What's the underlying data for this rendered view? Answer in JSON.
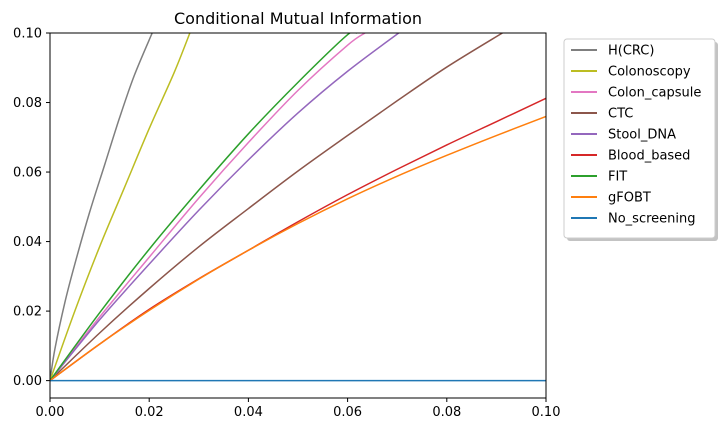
{
  "chart_data": {
    "type": "line",
    "title": "Conditional Mutual Information",
    "xlabel": "",
    "ylabel": "",
    "xlim": [
      0.0,
      0.1
    ],
    "ylim": [
      -0.005,
      0.1
    ],
    "x_ticks": [
      "0.00",
      "0.02",
      "0.04",
      "0.06",
      "0.08",
      "0.10"
    ],
    "y_ticks": [
      "0.00",
      "0.02",
      "0.04",
      "0.06",
      "0.08",
      "0.10"
    ],
    "x_tick_values": [
      0.0,
      0.02,
      0.04,
      0.06,
      0.08,
      0.1
    ],
    "y_tick_values": [
      0.0,
      0.02,
      0.04,
      0.06,
      0.08,
      0.1
    ],
    "grid": false,
    "legend_position": "outside-right-top",
    "series": [
      {
        "name": "H(CRC)",
        "color": "#7f7f7f",
        "x": [
          0.0,
          0.001,
          0.003,
          0.005,
          0.008,
          0.011,
          0.014,
          0.017,
          0.0206
        ],
        "y": [
          0.0,
          0.0092,
          0.0225,
          0.0335,
          0.0485,
          0.062,
          0.0755,
          0.0878,
          0.1
        ]
      },
      {
        "name": "Colonoscopy",
        "color": "#bcbd22",
        "x": [
          0.0,
          0.005,
          0.01,
          0.015,
          0.02,
          0.025,
          0.0282
        ],
        "y": [
          0.0,
          0.02,
          0.0385,
          0.0555,
          0.0725,
          0.0885,
          0.1
        ]
      },
      {
        "name": "Colon_capsule",
        "color": "#e377c2",
        "x": [
          0.0,
          0.01,
          0.02,
          0.03,
          0.04,
          0.05,
          0.06,
          0.0635
        ],
        "y": [
          0.0,
          0.0183,
          0.0355,
          0.0525,
          0.0685,
          0.0835,
          0.0965,
          0.1
        ]
      },
      {
        "name": "CTC",
        "color": "#8c564b",
        "x": [
          0.0,
          0.01,
          0.02,
          0.03,
          0.04,
          0.05,
          0.06,
          0.07,
          0.08,
          0.0912
        ],
        "y": [
          0.0,
          0.0137,
          0.0265,
          0.0385,
          0.0495,
          0.0603,
          0.0705,
          0.0805,
          0.0902,
          0.1
        ]
      },
      {
        "name": "Stool_DNA",
        "color": "#9467bd",
        "x": [
          0.0,
          0.01,
          0.02,
          0.03,
          0.04,
          0.05,
          0.06,
          0.0703
        ],
        "y": [
          0.0,
          0.0175,
          0.0335,
          0.049,
          0.0635,
          0.077,
          0.089,
          0.1
        ]
      },
      {
        "name": "Blood_based",
        "color": "#d62728",
        "x": [
          0.0,
          0.01,
          0.02,
          0.03,
          0.04,
          0.05,
          0.06,
          0.07,
          0.08,
          0.09,
          0.1
        ],
        "y": [
          0.0,
          0.0105,
          0.0205,
          0.0293,
          0.0375,
          0.0457,
          0.0535,
          0.0608,
          0.0678,
          0.0745,
          0.0812
        ]
      },
      {
        "name": "FIT",
        "color": "#2ca02c",
        "x": [
          0.0,
          0.01,
          0.02,
          0.03,
          0.04,
          0.05,
          0.06,
          0.0618
        ],
        "y": [
          0.0,
          0.0195,
          0.0378,
          0.0548,
          0.071,
          0.0858,
          0.0995,
          0.1
        ]
      },
      {
        "name": "gFOBT",
        "color": "#ff7f0e",
        "x": [
          0.0,
          0.01,
          0.02,
          0.03,
          0.04,
          0.05,
          0.06,
          0.07,
          0.08,
          0.09,
          0.1
        ],
        "y": [
          0.0,
          0.0105,
          0.0202,
          0.0292,
          0.0375,
          0.0452,
          0.0523,
          0.0588,
          0.0648,
          0.0705,
          0.076
        ]
      },
      {
        "name": "No_screening",
        "color": "#1f77b4",
        "x": [
          0.0,
          0.1
        ],
        "y": [
          0.0,
          0.0
        ]
      }
    ]
  }
}
